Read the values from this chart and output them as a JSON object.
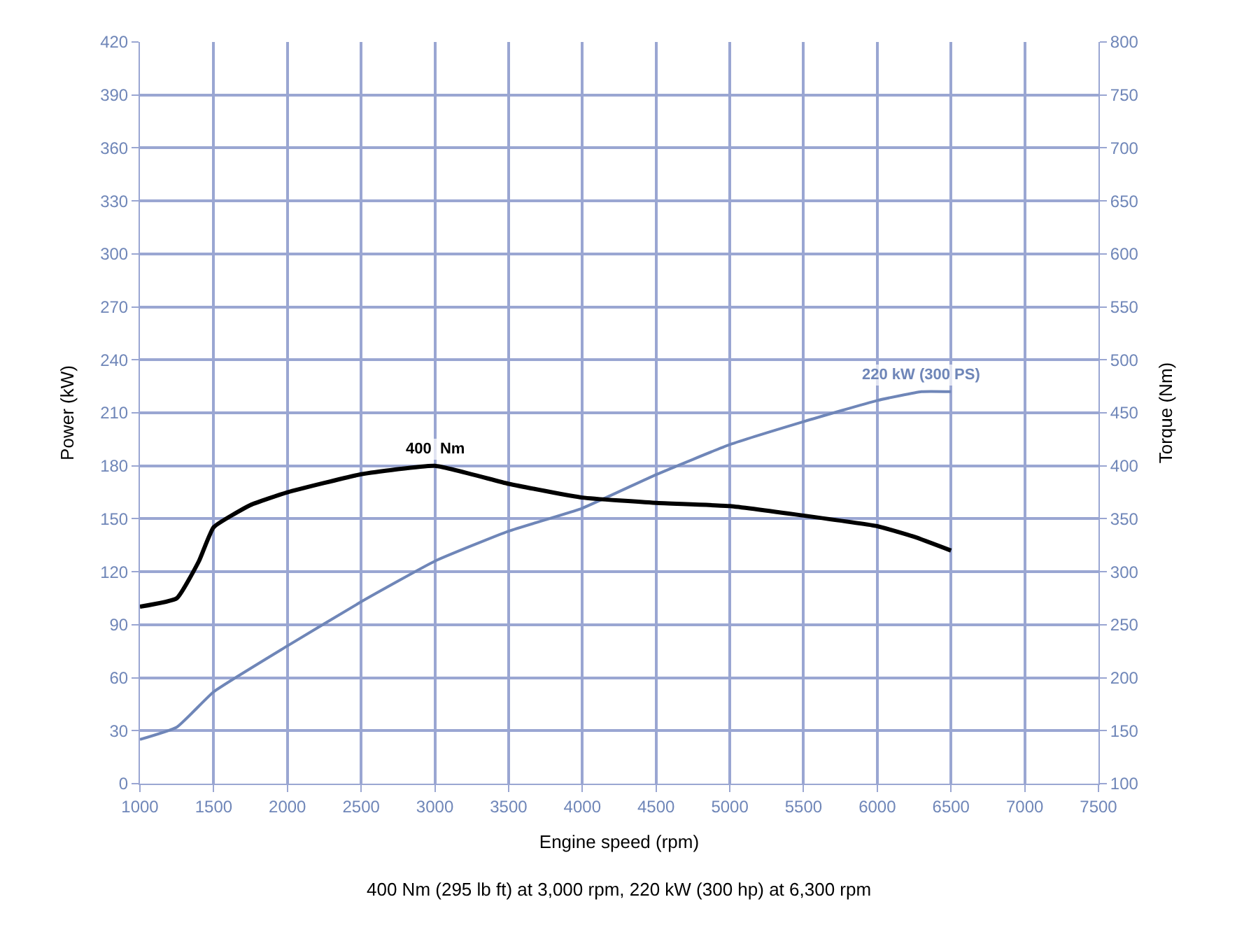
{
  "chart_data": {
    "type": "line",
    "xlabel": "Engine speed (rpm)",
    "ylabel": "Power (kW)",
    "y2label": "Torque (Nm)",
    "xlim": [
      1000,
      7500
    ],
    "xticks": [
      1000,
      1500,
      2000,
      2500,
      3000,
      3500,
      4000,
      4500,
      5000,
      5500,
      6000,
      6500,
      7000,
      7500
    ],
    "ylim": [
      0,
      420
    ],
    "yticks": [
      0,
      30,
      60,
      90,
      120,
      150,
      180,
      210,
      240,
      270,
      300,
      330,
      360,
      390,
      420
    ],
    "y2lim": [
      100,
      800
    ],
    "y2ticks": [
      100,
      150,
      200,
      250,
      300,
      350,
      400,
      450,
      500,
      550,
      600,
      650,
      700,
      750,
      800
    ],
    "grid": true,
    "legend": false,
    "marker": "none",
    "series": [
      {
        "color": "#6f86b8",
        "x": [
          1000,
          1250,
          1500,
          2000,
          2500,
          3000,
          3500,
          4000,
          4500,
          5000,
          5500,
          6000,
          6300,
          6500
        ],
        "values": [
          25,
          32,
          52,
          78,
          103,
          126,
          143,
          156,
          175,
          192,
          205,
          217,
          222,
          222
        ]
      },
      {
        "color": "#000000",
        "axis": "y2",
        "x": [
          1000,
          1250,
          1400,
          1500,
          1750,
          2000,
          2500,
          3000,
          3500,
          4000,
          4500,
          5000,
          5500,
          6000,
          6250,
          6500
        ],
        "values": [
          267,
          275,
          310,
          342,
          363,
          375,
          392,
          400,
          383,
          370,
          365,
          362,
          353,
          343,
          333,
          320
        ]
      }
    ],
    "annotations": [
      {
        "text": "400  Nm",
        "x": 3000,
        "y": 180
      },
      {
        "text": "220 kW (300 PS)",
        "x": 6300,
        "y": 222
      },
      "400 Nm (295 lb ft) at 3,000 rpm, 220 kW (300 hp) at 6,300 rpm"
    ]
  }
}
